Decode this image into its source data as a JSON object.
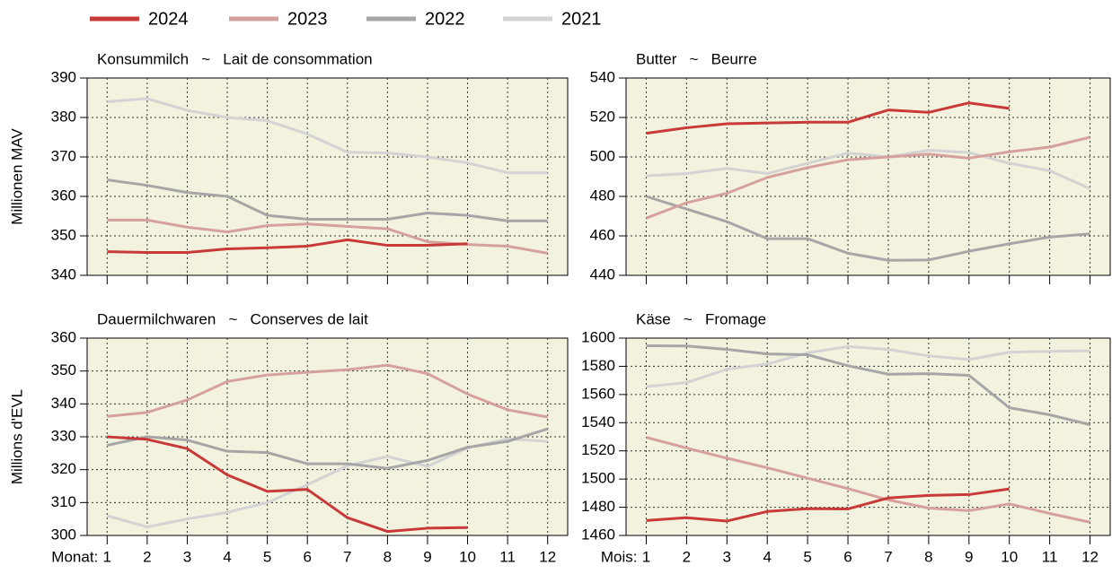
{
  "chart_data": [
    {
      "type": "line",
      "title": "Konsummilch   ~   Lait de consommation",
      "ylabel": "Millionen MAV",
      "x": [
        1,
        2,
        3,
        4,
        5,
        6,
        7,
        8,
        9,
        10,
        11,
        12
      ],
      "xlim": [
        0.5,
        12.5
      ],
      "xticks": [
        1,
        2,
        3,
        4,
        5,
        6,
        7,
        8,
        9,
        10,
        11,
        12
      ],
      "show_xtick_labels": false,
      "ylim": [
        340,
        390
      ],
      "yticks": [
        340,
        350,
        360,
        370,
        380,
        390
      ],
      "grid": true,
      "background": "#f3f2df",
      "series": [
        {
          "name": "2024",
          "color": "#c83a3a",
          "values": [
            346,
            345.8,
            345.8,
            346.7,
            347,
            347.4,
            349,
            347.6,
            347.6,
            348,
            null,
            null
          ]
        },
        {
          "name": "2023",
          "color": "#d6a19d",
          "values": [
            354,
            354,
            352.2,
            351,
            352.6,
            353,
            352.4,
            351.8,
            348.5,
            347.8,
            347.4,
            345.6
          ]
        },
        {
          "name": "2022",
          "color": "#a6a6a6",
          "values": [
            364.2,
            362.8,
            361,
            360,
            355.2,
            354.2,
            354.2,
            354.2,
            355.8,
            355.2,
            353.8,
            353.8
          ]
        },
        {
          "name": "2021",
          "color": "#d3d3d3",
          "values": [
            384,
            384.8,
            381.8,
            380,
            379.2,
            375.8,
            371.2,
            371,
            370,
            368.5,
            366,
            366
          ]
        }
      ]
    },
    {
      "type": "line",
      "title": "Butter   ~   Beurre",
      "x": [
        1,
        2,
        3,
        4,
        5,
        6,
        7,
        8,
        9,
        10,
        11,
        12
      ],
      "xlim": [
        0.5,
        12.5
      ],
      "xticks": [
        1,
        2,
        3,
        4,
        5,
        6,
        7,
        8,
        9,
        10,
        11,
        12
      ],
      "show_xtick_labels": false,
      "ylim": [
        440,
        540
      ],
      "yticks": [
        440,
        460,
        480,
        500,
        520,
        540
      ],
      "grid": true,
      "background": "#f3f2df",
      "series": [
        {
          "name": "2024",
          "color": "#c83a3a",
          "values": [
            512,
            514.8,
            516.8,
            517.2,
            517.6,
            517.6,
            523.8,
            522.6,
            527.4,
            524.6,
            null,
            null
          ]
        },
        {
          "name": "2023",
          "color": "#d6a19d",
          "values": [
            469,
            476.8,
            481.6,
            489.6,
            494.6,
            498.6,
            500,
            501.4,
            499.4,
            502.6,
            505,
            510
          ]
        },
        {
          "name": "2022",
          "color": "#a6a6a6",
          "values": [
            480,
            473.6,
            467.2,
            458.6,
            458.6,
            451.2,
            447.6,
            447.8,
            452.2,
            456,
            459.4,
            461
          ]
        },
        {
          "name": "2021",
          "color": "#d3d3d3",
          "values": [
            490.4,
            491.6,
            494.2,
            491.6,
            496.8,
            502,
            500,
            503.4,
            502.2,
            496.8,
            493,
            484
          ]
        }
      ]
    },
    {
      "type": "line",
      "title": "Dauermilchwaren   ~   Conserves de lait",
      "ylabel": "Millions d'EVL",
      "xlabel": "Monat:",
      "x": [
        1,
        2,
        3,
        4,
        5,
        6,
        7,
        8,
        9,
        10,
        11,
        12
      ],
      "xlim": [
        0.5,
        12.5
      ],
      "xticks": [
        1,
        2,
        3,
        4,
        5,
        6,
        7,
        8,
        9,
        10,
        11,
        12
      ],
      "show_xtick_labels": true,
      "ylim": [
        300,
        360
      ],
      "yticks": [
        300,
        310,
        320,
        330,
        340,
        350,
        360
      ],
      "grid": true,
      "background": "#f3f2df",
      "series": [
        {
          "name": "2024",
          "color": "#c83a3a",
          "values": [
            330,
            329.2,
            326.4,
            318.4,
            313.4,
            314,
            305.4,
            301.2,
            302.2,
            302.4,
            null,
            null
          ]
        },
        {
          "name": "2023",
          "color": "#d6a19d",
          "values": [
            336.2,
            337.4,
            341.2,
            346.8,
            348.8,
            349.6,
            350.4,
            351.8,
            349.2,
            343,
            338.2,
            336
          ]
        },
        {
          "name": "2022",
          "color": "#a6a6a6",
          "values": [
            327.4,
            330,
            329,
            325.6,
            325.2,
            321.8,
            321.8,
            320.4,
            322.8,
            326.8,
            328.6,
            332.4
          ]
        },
        {
          "name": "2021",
          "color": "#d3d3d3",
          "values": [
            306,
            302.6,
            305,
            307,
            310,
            315.4,
            321.2,
            324,
            321,
            326.6,
            329.4,
            328.6
          ]
        }
      ]
    },
    {
      "type": "line",
      "title": "Käse   ~   Fromage",
      "xlabel": "Mois:",
      "x": [
        1,
        2,
        3,
        4,
        5,
        6,
        7,
        8,
        9,
        10,
        11,
        12
      ],
      "xlim": [
        0.5,
        12.5
      ],
      "xticks": [
        1,
        2,
        3,
        4,
        5,
        6,
        7,
        8,
        9,
        10,
        11,
        12
      ],
      "show_xtick_labels": true,
      "ylim": [
        1460,
        1600
      ],
      "yticks": [
        1460,
        1480,
        1500,
        1520,
        1540,
        1560,
        1580,
        1600
      ],
      "grid": true,
      "background": "#f3f2df",
      "series": [
        {
          "name": "2024",
          "color": "#c83a3a",
          "values": [
            1470.6,
            1472.6,
            1470.2,
            1477,
            1479,
            1478.8,
            1486.6,
            1488.4,
            1489,
            1493,
            null,
            null
          ]
        },
        {
          "name": "2023",
          "color": "#d6a19d",
          "values": [
            1529.6,
            1522,
            1514.8,
            1508,
            1500.6,
            1493.2,
            1485.2,
            1479.4,
            1477.6,
            1482.4,
            1475.6,
            1469.4
          ]
        },
        {
          "name": "2022",
          "color": "#a6a6a6",
          "values": [
            1594.6,
            1594.4,
            1592,
            1588.8,
            1588.2,
            1580.4,
            1574.4,
            1574.8,
            1573.6,
            1550.6,
            1545.6,
            1538.6
          ]
        },
        {
          "name": "2021",
          "color": "#d3d3d3",
          "values": [
            1565.6,
            1568.4,
            1578,
            1581.6,
            1589.6,
            1594,
            1592,
            1587.4,
            1584.8,
            1590,
            1590.6,
            1591
          ]
        }
      ]
    }
  ]
}
